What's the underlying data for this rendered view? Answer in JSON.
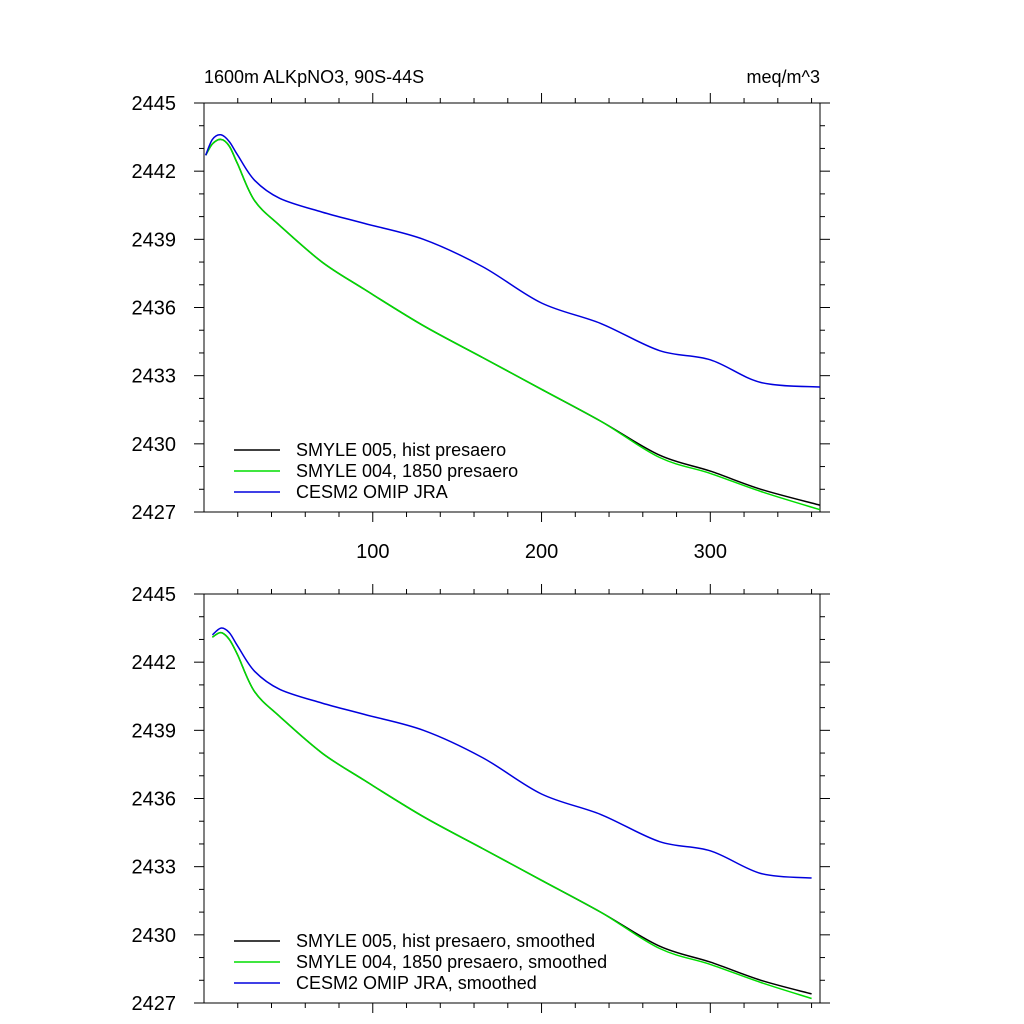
{
  "chart_data": [
    {
      "type": "line",
      "title_left": "1600m ALKpNO3, 90S-44S",
      "title_right": "meq/m^3",
      "xlabel": "",
      "ylabel": "",
      "xlim": [
        0,
        365
      ],
      "ylim": [
        2427,
        2445
      ],
      "x_ticks": [
        100,
        200,
        300
      ],
      "y_ticks": [
        2427,
        2430,
        2433,
        2436,
        2439,
        2442,
        2445
      ],
      "legend_position": "bottom-left",
      "series": [
        {
          "name": "SMYLE 005, hist presaero",
          "color": "#000000",
          "x": [
            1,
            5,
            10,
            15,
            20,
            30,
            45,
            70,
            95,
            130,
            165,
            200,
            235,
            270,
            300,
            330,
            365
          ],
          "y": [
            2442.7,
            2443.2,
            2443.4,
            2443.1,
            2442.3,
            2440.7,
            2439.6,
            2438.0,
            2436.8,
            2435.2,
            2433.8,
            2432.4,
            2431.0,
            2429.5,
            2428.8,
            2428.0,
            2427.3
          ]
        },
        {
          "name": "SMYLE 004, 1850 presaero",
          "color": "#00dd00",
          "x": [
            1,
            5,
            10,
            15,
            20,
            30,
            45,
            70,
            95,
            130,
            165,
            200,
            235,
            270,
            300,
            330,
            365
          ],
          "y": [
            2442.7,
            2443.2,
            2443.4,
            2443.1,
            2442.3,
            2440.7,
            2439.6,
            2438.0,
            2436.8,
            2435.2,
            2433.8,
            2432.4,
            2431.0,
            2429.4,
            2428.7,
            2427.9,
            2427.1
          ]
        },
        {
          "name": "CESM2 OMIP JRA",
          "color": "#0000dd",
          "x": [
            1,
            5,
            10,
            15,
            20,
            30,
            45,
            70,
            95,
            130,
            165,
            200,
            235,
            270,
            300,
            330,
            365
          ],
          "y": [
            2442.7,
            2443.4,
            2443.6,
            2443.3,
            2442.7,
            2441.6,
            2440.8,
            2440.2,
            2439.7,
            2439.0,
            2437.8,
            2436.2,
            2435.3,
            2434.1,
            2433.7,
            2432.7,
            2432.5
          ]
        }
      ]
    },
    {
      "type": "line",
      "title_left": "",
      "title_right": "",
      "xlabel": "",
      "ylabel": "",
      "xlim": [
        0,
        365
      ],
      "ylim": [
        2427,
        2445
      ],
      "x_ticks": [
        100,
        200,
        300
      ],
      "y_ticks": [
        2427,
        2430,
        2433,
        2436,
        2439,
        2442,
        2445
      ],
      "legend_position": "bottom-left",
      "series": [
        {
          "name": "SMYLE 005, hist presaero, smoothed",
          "color": "#000000",
          "x": [
            5,
            10,
            15,
            20,
            30,
            45,
            70,
            95,
            130,
            165,
            200,
            235,
            270,
            300,
            330,
            360
          ],
          "y": [
            2443.1,
            2443.3,
            2443.0,
            2442.3,
            2440.7,
            2439.6,
            2438.0,
            2436.8,
            2435.2,
            2433.8,
            2432.4,
            2431.0,
            2429.5,
            2428.8,
            2428.0,
            2427.4
          ]
        },
        {
          "name": "SMYLE 004, 1850 presaero, smoothed",
          "color": "#00dd00",
          "x": [
            5,
            10,
            15,
            20,
            30,
            45,
            70,
            95,
            130,
            165,
            200,
            235,
            270,
            300,
            330,
            360
          ],
          "y": [
            2443.1,
            2443.3,
            2443.0,
            2442.3,
            2440.7,
            2439.6,
            2438.0,
            2436.8,
            2435.2,
            2433.8,
            2432.4,
            2431.0,
            2429.4,
            2428.7,
            2427.9,
            2427.2
          ]
        },
        {
          "name": "CESM2 OMIP JRA, smoothed",
          "color": "#0000dd",
          "x": [
            5,
            10,
            15,
            20,
            30,
            45,
            70,
            95,
            130,
            165,
            200,
            235,
            270,
            300,
            330,
            360
          ],
          "y": [
            2443.2,
            2443.5,
            2443.3,
            2442.7,
            2441.6,
            2440.8,
            2440.2,
            2439.7,
            2439.0,
            2437.8,
            2436.2,
            2435.3,
            2434.1,
            2433.7,
            2432.7,
            2432.5
          ]
        }
      ]
    }
  ]
}
